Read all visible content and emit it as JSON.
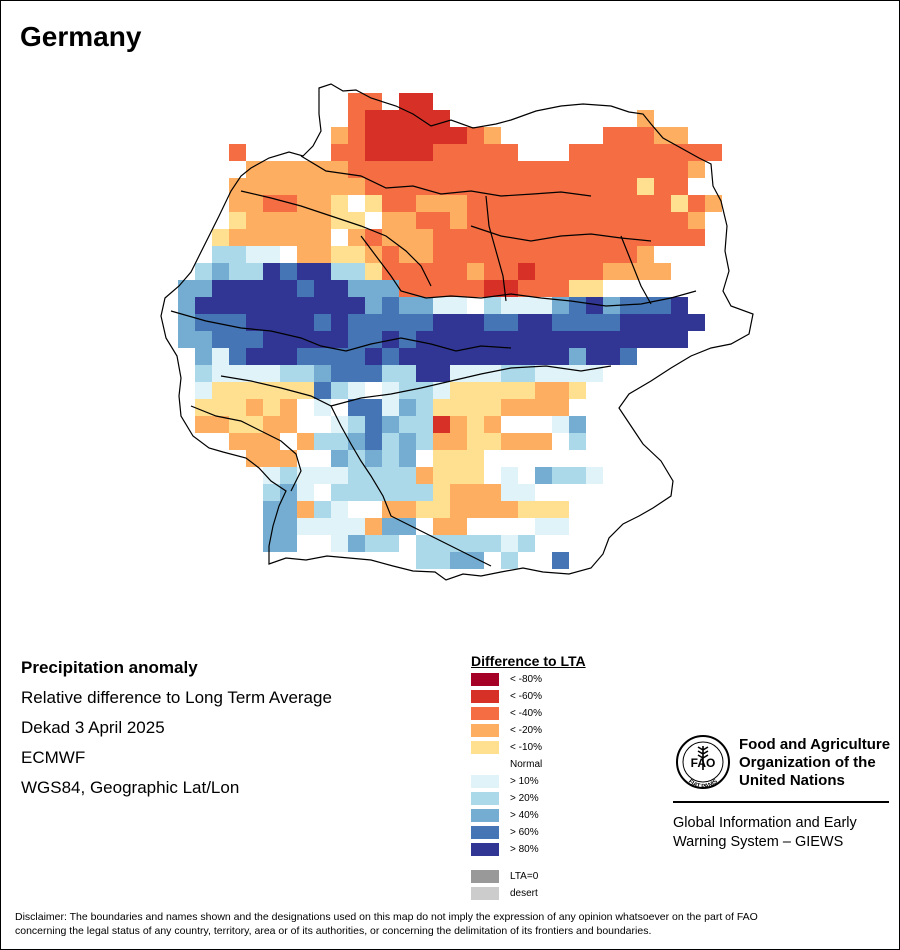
{
  "title": "Germany",
  "metadata": {
    "heading": "Precipitation anomaly",
    "line1": "Relative difference to Long Term Average",
    "line2": "Dekad 3 April 2025",
    "line3": "ECMWF",
    "line4": "WGS84, Geographic Lat/Lon"
  },
  "legend": {
    "title": "Difference to LTA",
    "classes": [
      {
        "label": "< -80%",
        "color": "#a50026"
      },
      {
        "label": "< -60%",
        "color": "#d73027"
      },
      {
        "label": "< -40%",
        "color": "#f46d43"
      },
      {
        "label": "< -20%",
        "color": "#fdae61"
      },
      {
        "label": "< -10%",
        "color": "#fee090"
      },
      {
        "label": "Normal",
        "color": "#ffffff"
      },
      {
        "label": "> 10%",
        "color": "#e0f3f8"
      },
      {
        "label": "> 20%",
        "color": "#abd9e9"
      },
      {
        "label": "> 40%",
        "color": "#74add1"
      },
      {
        "label": "> 60%",
        "color": "#4575b4"
      },
      {
        "label": "> 80%",
        "color": "#313695"
      }
    ],
    "extra": [
      {
        "label": "LTA=0",
        "color": "#999999"
      },
      {
        "label": "desert",
        "color": "#cccccc"
      }
    ]
  },
  "logo": {
    "org_line1": "Food and Agriculture",
    "org_line2": "Organization of the",
    "org_line3": "United Nations",
    "giews_line1": "Global Information and Early",
    "giews_line2": "Warning System – GIEWS",
    "seal_motto": "FIAT PANIS",
    "seal_letters": "FAO"
  },
  "disclaimer_line1": "Disclaimer: The boundaries and names shown and the designations used on this map do not imply the expression of any opinion whatsoever on the part of FAO",
  "disclaimer_line2": "concerning the legal status of any country, territory, area or of its authorities, or concerning the delimitation of its frontiers and boundaries.",
  "map_grid": {
    "row_start": 1,
    "rows": [
      "...........22.11...................",
      "...........211111...........3......",
      "..........3211111123......22233....",
      "....2.....22111122222...222222222..",
      ".....333333222222222222222222223...",
      "....333333332222222222222222422....",
      "....33223345422333222222222222423..",
      "....4333334453322322222222222223...",
      "...43333335323332222222222222222...",
      "...77665334432332222222222223......",
      "..7877a9aa77422222322122223333.....",
      ".88aaaaa9aa88822222112224455.......",
      ".8aaaaaaaaaa8988665766689a8999a....",
      ".8999aaaa9a99999aaa99aa9999aaaaa...",
      ".88999aaaaa99a9aaaaaaaaaaaaaaaa....",
      "..869aaa9999a9aaaaaaaaaa8aa9.......",
      "..7666677899977aa666776666.........",
      "..64444449765677644444334..........",
      "..4443435659968744443333...........",
      "..33443355679877134355568..........",
      "....333537789787334433357..........",
      ".....3335587878544455555...........",
      "......67666777734445658776.........",
      "......78657777774333665555.........",
      "......883765533443333444...........",
      "......886666388533555566...........",
      "......88.56877577777675............",
      "...............7788.7..9..........."
    ]
  }
}
